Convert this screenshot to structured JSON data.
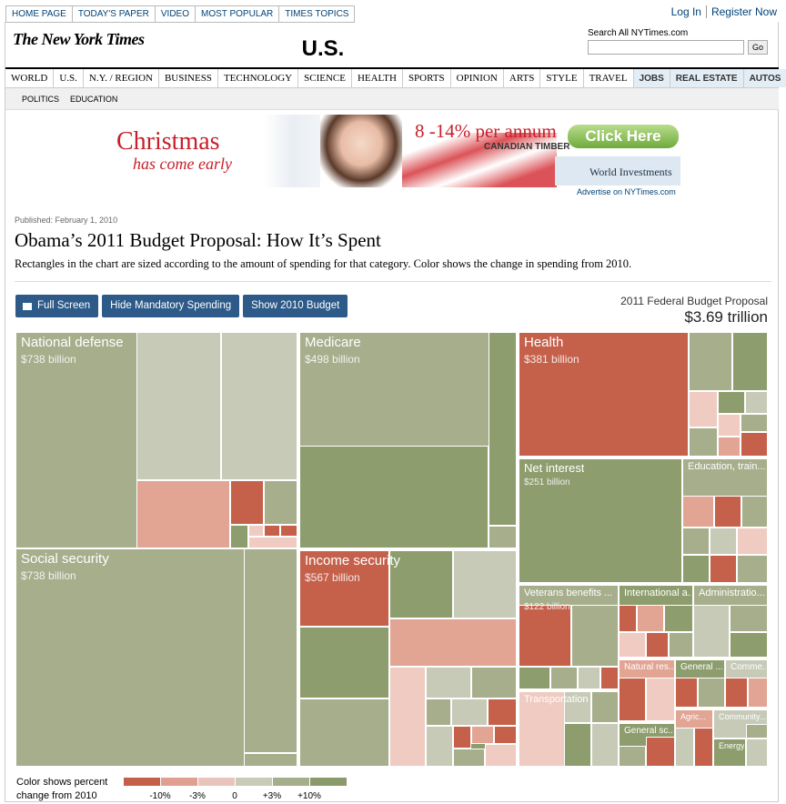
{
  "top_nav": [
    "HOME PAGE",
    "TODAY'S PAPER",
    "VIDEO",
    "MOST POPULAR",
    "TIMES TOPICS"
  ],
  "account": [
    "Log In",
    "Register Now"
  ],
  "logo": "The New York Times",
  "section": "U.S.",
  "search": {
    "label": "Search All NYTimes.com",
    "button": "Go"
  },
  "nav": [
    "WORLD",
    "U.S.",
    "N.Y. / REGION",
    "BUSINESS",
    "TECHNOLOGY",
    "SCIENCE",
    "HEALTH",
    "SPORTS",
    "OPINION",
    "ARTS",
    "STYLE",
    "TRAVEL",
    "JOBS",
    "REAL ESTATE",
    "AUTOS"
  ],
  "subnav": [
    "POLITICS",
    "EDUCATION"
  ],
  "ad": {
    "headline": "Christmas",
    "tagline": "has come early",
    "rate": "8 -14% per annum",
    "company": "CANADIAN TIMBER",
    "cta": "Click Here",
    "brand": "World Investments",
    "advertise": "Advertise on NYTimes.com"
  },
  "article": {
    "published": "Published: February 1, 2010",
    "title": "Obama’s 2011 Budget Proposal: How It’s Spent",
    "description": "Rectangles in the chart are sized according to the amount of spending for that category. Color shows the change in spending from 2010."
  },
  "buttons": [
    "Full Screen",
    "Hide Mandatory Spending",
    "Show 2010 Budget"
  ],
  "total": {
    "label": "2011 Federal Budget Proposal",
    "value": "$3.69 trillion"
  },
  "treemap": {
    "categories": [
      {
        "name": "National defense",
        "amount": "$738 billion"
      },
      {
        "name": "Social security",
        "amount": "$738 billion"
      },
      {
        "name": "Medicare",
        "amount": "$498 billion"
      },
      {
        "name": "Income security",
        "amount": "$567 billion"
      },
      {
        "name": "Health",
        "amount": "$381 billion"
      },
      {
        "name": "Net interest",
        "amount": "$251 billion"
      },
      {
        "name": "Education, train..."
      },
      {
        "name": "Veterans benefits ...",
        "amount": "$122 billion"
      },
      {
        "name": "Transportation"
      },
      {
        "name": "International a..."
      },
      {
        "name": "Administratio..."
      },
      {
        "name": "Natural res..."
      },
      {
        "name": "General ..."
      },
      {
        "name": "Comme..."
      },
      {
        "name": "General sc..."
      },
      {
        "name": "Agric..."
      },
      {
        "name": "Community..."
      },
      {
        "name": "Energy"
      }
    ]
  },
  "legend": {
    "title": "Color shows percent change from 2010",
    "labels": [
      "-10%",
      "-3%",
      "0",
      "+3%",
      "+10%"
    ]
  }
}
